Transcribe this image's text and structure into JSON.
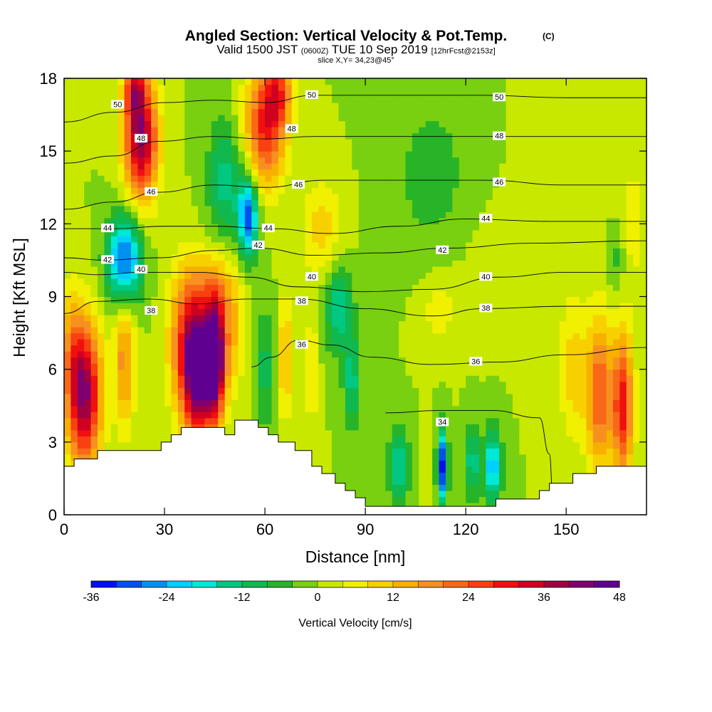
{
  "title": {
    "main": "Angled Section: Vertical Velocity & Pot.Temp.",
    "mark": "(C)",
    "valid_prefix": "Valid 1500 JST",
    "utc": "(0600Z)",
    "date": "TUE 10 Sep 2019",
    "forecast": "[12hrFcst@2153z]",
    "slice": "slice X,Y= 34,23@45°"
  },
  "chart_data": {
    "type": "heatmap",
    "xlabel": "Distance [nm]",
    "ylabel": "Height [Kft MSL]",
    "xlim": [
      0,
      174
    ],
    "ylim": [
      0,
      18
    ],
    "x_ticks": [
      0,
      30,
      60,
      90,
      120,
      150
    ],
    "y_ticks": [
      0,
      3,
      6,
      9,
      12,
      15,
      18
    ],
    "grid": false,
    "colorbar": {
      "title": "Vertical Velocity [cm/s]",
      "min": -36,
      "max": 48,
      "step": 4,
      "tick_values": [
        -36,
        -24,
        -12,
        0,
        12,
        24,
        36,
        48
      ],
      "tick_labels": [
        "-36",
        "-24",
        "-12",
        "0",
        "12",
        "24",
        "36",
        "48"
      ],
      "colors": [
        "#0010f0",
        "#0050f0",
        "#0090f0",
        "#00d0ff",
        "#00e8d8",
        "#00c880",
        "#10b850",
        "#28b428",
        "#78d010",
        "#c8e800",
        "#f0f000",
        "#f8d000",
        "#f8b000",
        "#f89020",
        "#f86818",
        "#f84010",
        "#f01010",
        "#d00020",
        "#a00040",
        "#800070",
        "#600090"
      ]
    },
    "velocity_cells": [
      {
        "x": 6,
        "z": 5.0,
        "rx": 5,
        "rz": 3.0,
        "w": 42
      },
      {
        "x": 18,
        "z": 6.5,
        "rx": 3,
        "rz": 3.0,
        "w": 18
      },
      {
        "x": 2,
        "z": 7.0,
        "rx": 3,
        "rz": 2.5,
        "w": 10
      },
      {
        "x": 23,
        "z": 15.5,
        "rx": 5,
        "rz": 2.5,
        "w": 40
      },
      {
        "x": 21,
        "z": 17.6,
        "rx": 3,
        "rz": 1.2,
        "w": 22
      },
      {
        "x": 18,
        "z": 10.5,
        "rx": 5,
        "rz": 1.8,
        "w": -32
      },
      {
        "x": 40,
        "z": 6.0,
        "rx": 4,
        "rz": 2.6,
        "w": 48
      },
      {
        "x": 45,
        "z": 6.5,
        "rx": 3,
        "rz": 2.6,
        "w": 52
      },
      {
        "x": 36,
        "z": 7.0,
        "rx": 5,
        "rz": 3.0,
        "w": 22
      },
      {
        "x": 50,
        "z": 7.5,
        "rx": 4,
        "rz": 2.5,
        "w": 12
      },
      {
        "x": 44,
        "z": 9.5,
        "rx": 8,
        "rz": 1.5,
        "w": 8
      },
      {
        "x": 55,
        "z": 12.3,
        "rx": 3,
        "rz": 1.7,
        "w": -30
      },
      {
        "x": 48,
        "z": 13.8,
        "rx": 5,
        "rz": 2.5,
        "w": -14
      },
      {
        "x": 60,
        "z": 16.0,
        "rx": 6,
        "rz": 2.5,
        "w": 28
      },
      {
        "x": 64,
        "z": 17.5,
        "rx": 4,
        "rz": 1.5,
        "w": 20
      },
      {
        "x": 60,
        "z": 6.0,
        "rx": 3,
        "rz": 2.5,
        "w": -10
      },
      {
        "x": 66,
        "z": 6.5,
        "rx": 2,
        "rz": 2.5,
        "w": 14
      },
      {
        "x": 74,
        "z": 6.0,
        "rx": 2,
        "rz": 2.5,
        "w": 8
      },
      {
        "x": 77,
        "z": 11.8,
        "rx": 6,
        "rz": 2.0,
        "w": 10
      },
      {
        "x": 82,
        "z": 8.5,
        "rx": 4,
        "rz": 1.8,
        "w": -16
      },
      {
        "x": 86,
        "z": 5.5,
        "rx": 2.5,
        "rz": 2.0,
        "w": -14
      },
      {
        "x": 100,
        "z": 2.0,
        "rx": 3,
        "rz": 1.5,
        "w": -18
      },
      {
        "x": 113,
        "z": 2.0,
        "rx": 1.5,
        "rz": 1.5,
        "w": -34
      },
      {
        "x": 108,
        "z": 2.2,
        "rx": 2,
        "rz": 1.5,
        "w": 4
      },
      {
        "x": 122,
        "z": 2.2,
        "rx": 2,
        "rz": 1.5,
        "w": -16
      },
      {
        "x": 128,
        "z": 2.0,
        "rx": 2.5,
        "rz": 1.5,
        "w": -24
      },
      {
        "x": 135,
        "z": 2.5,
        "rx": 2.5,
        "rz": 1.5,
        "w": 0
      },
      {
        "x": 112,
        "z": 8.5,
        "rx": 6,
        "rz": 1.5,
        "w": 6
      },
      {
        "x": 128,
        "z": 10.5,
        "rx": 12,
        "rz": 2.5,
        "w": 2
      },
      {
        "x": 110,
        "z": 14.0,
        "rx": 12,
        "rz": 3.5,
        "w": -6
      },
      {
        "x": 150,
        "z": 14.5,
        "rx": 10,
        "rz": 3.5,
        "w": 4
      },
      {
        "x": 160,
        "z": 5.0,
        "rx": 4,
        "rz": 3.2,
        "w": 24
      },
      {
        "x": 167,
        "z": 4.5,
        "rx": 3,
        "rz": 3.0,
        "w": 30
      },
      {
        "x": 152,
        "z": 6.0,
        "rx": 4,
        "rz": 3.0,
        "w": 10
      },
      {
        "x": 165,
        "z": 10.5,
        "rx": 3,
        "rz": 1.5,
        "w": -6
      },
      {
        "x": 170,
        "z": 12.0,
        "rx": 4,
        "rz": 3.0,
        "w": 6
      }
    ],
    "terrain_kft": [
      [
        0,
        2.0
      ],
      [
        3,
        2.0
      ],
      [
        3,
        2.3
      ],
      [
        10,
        2.3
      ],
      [
        10,
        2.65
      ],
      [
        29,
        2.65
      ],
      [
        29,
        3.0
      ],
      [
        32,
        3.0
      ],
      [
        32,
        3.3
      ],
      [
        35,
        3.3
      ],
      [
        35,
        3.6
      ],
      [
        48,
        3.6
      ],
      [
        48,
        3.3
      ],
      [
        51,
        3.3
      ],
      [
        51,
        3.9
      ],
      [
        58,
        3.9
      ],
      [
        58,
        3.6
      ],
      [
        61,
        3.6
      ],
      [
        61,
        3.3
      ],
      [
        64,
        3.3
      ],
      [
        64,
        3.0
      ],
      [
        69,
        3.0
      ],
      [
        69,
        2.65
      ],
      [
        74,
        2.65
      ],
      [
        74,
        2.0
      ],
      [
        77,
        2.0
      ],
      [
        77,
        1.7
      ],
      [
        81,
        1.7
      ],
      [
        81,
        1.3
      ],
      [
        84,
        1.3
      ],
      [
        84,
        1.0
      ],
      [
        87,
        1.0
      ],
      [
        87,
        0.7
      ],
      [
        90,
        0.7
      ],
      [
        90,
        0.35
      ],
      [
        129,
        0.35
      ],
      [
        129,
        0.65
      ],
      [
        142,
        0.65
      ],
      [
        142,
        1.0
      ],
      [
        145,
        1.0
      ],
      [
        145,
        1.3
      ],
      [
        152,
        1.3
      ],
      [
        152,
        1.7
      ],
      [
        159,
        1.7
      ],
      [
        159,
        2.0
      ],
      [
        174,
        2.0
      ]
    ],
    "theta_contours": [
      {
        "label": "34",
        "points": [
          [
            96,
            4.2
          ],
          [
            112,
            4.3
          ],
          [
            128,
            4.3
          ],
          [
            142,
            4.0
          ],
          [
            145,
            2.5
          ],
          [
            146,
            0.9
          ]
        ],
        "label_at": [
          113,
          3.8
        ]
      },
      {
        "label": "36",
        "points": [
          [
            56,
            6.1
          ],
          [
            62,
            6.5
          ],
          [
            70,
            7.2
          ],
          [
            80,
            7.0
          ],
          [
            92,
            6.5
          ],
          [
            110,
            6.2
          ],
          [
            130,
            6.3
          ],
          [
            150,
            6.6
          ],
          [
            174,
            6.9
          ]
        ],
        "label_at": [
          71,
          7.0
        ]
      },
      {
        "label": "38",
        "points": [
          [
            0,
            8.3
          ],
          [
            10,
            8.8
          ],
          [
            25,
            8.9
          ],
          [
            40,
            8.7
          ],
          [
            55,
            8.9
          ],
          [
            70,
            8.9
          ],
          [
            90,
            8.5
          ],
          [
            110,
            8.2
          ],
          [
            125,
            8.5
          ],
          [
            150,
            8.6
          ],
          [
            174,
            8.6
          ]
        ],
        "label_at": [
          26,
          8.4
        ]
      },
      {
        "label": "40",
        "points": [
          [
            0,
            10.0
          ],
          [
            10,
            9.9
          ],
          [
            23,
            10.0
          ],
          [
            40,
            10.0
          ],
          [
            55,
            9.8
          ],
          [
            70,
            9.4
          ],
          [
            90,
            9.2
          ],
          [
            110,
            9.3
          ],
          [
            130,
            9.8
          ],
          [
            150,
            10.0
          ],
          [
            174,
            10.0
          ]
        ],
        "label_at": [
          75,
          9.7
        ]
      },
      {
        "label": "42",
        "points": [
          [
            0,
            10.6
          ],
          [
            12,
            10.5
          ],
          [
            28,
            10.6
          ],
          [
            45,
            10.9
          ],
          [
            58,
            11.0
          ],
          [
            75,
            10.7
          ],
          [
            95,
            10.8
          ],
          [
            115,
            11.0
          ],
          [
            140,
            11.2
          ],
          [
            174,
            11.3
          ]
        ],
        "label_at": [
          13,
          10.5
        ]
      },
      {
        "label": "44",
        "points": [
          [
            0,
            11.8
          ],
          [
            15,
            11.8
          ],
          [
            30,
            11.9
          ],
          [
            45,
            11.9
          ],
          [
            62,
            11.8
          ],
          [
            80,
            11.6
          ],
          [
            100,
            11.9
          ],
          [
            120,
            12.2
          ],
          [
            145,
            12.1
          ],
          [
            174,
            12.1
          ]
        ],
        "label_at": [
          12,
          11.8
        ]
      },
      {
        "label": "46",
        "points": [
          [
            0,
            12.6
          ],
          [
            15,
            12.9
          ],
          [
            28,
            13.3
          ],
          [
            45,
            13.6
          ],
          [
            60,
            13.5
          ],
          [
            78,
            13.8
          ],
          [
            100,
            13.8
          ],
          [
            125,
            13.8
          ],
          [
            150,
            13.6
          ],
          [
            174,
            13.6
          ]
        ],
        "label_at": [
          25,
          13.0
        ]
      },
      {
        "label": "48",
        "points": [
          [
            0,
            14.5
          ],
          [
            15,
            14.8
          ],
          [
            28,
            15.4
          ],
          [
            45,
            15.6
          ],
          [
            60,
            15.5
          ],
          [
            75,
            15.6
          ],
          [
            100,
            15.6
          ],
          [
            125,
            15.6
          ],
          [
            150,
            15.6
          ],
          [
            174,
            15.6
          ]
        ],
        "label_at": [
          24,
          15.6
        ]
      },
      {
        "label": "50",
        "points": [
          [
            0,
            16.2
          ],
          [
            15,
            16.6
          ],
          [
            30,
            17.0
          ],
          [
            45,
            17.1
          ],
          [
            60,
            17.0
          ],
          [
            75,
            17.3
          ],
          [
            100,
            17.3
          ],
          [
            125,
            17.3
          ],
          [
            150,
            17.2
          ],
          [
            174,
            17.2
          ]
        ],
        "label_at": [
          16,
          16.9
        ]
      }
    ],
    "contour_labels": [
      {
        "text": "50",
        "x": 16,
        "z": 16.9
      },
      {
        "text": "48",
        "x": 23,
        "z": 15.5
      },
      {
        "text": "46",
        "x": 26,
        "z": 13.3
      },
      {
        "text": "44",
        "x": 13,
        "z": 11.8
      },
      {
        "text": "42",
        "x": 13,
        "z": 10.5
      },
      {
        "text": "40",
        "x": 23,
        "z": 10.1
      },
      {
        "text": "38",
        "x": 26,
        "z": 8.4
      },
      {
        "text": "44",
        "x": 61,
        "z": 11.8
      },
      {
        "text": "42",
        "x": 58,
        "z": 11.1
      },
      {
        "text": "40",
        "x": 74,
        "z": 9.8
      },
      {
        "text": "38",
        "x": 71,
        "z": 8.8
      },
      {
        "text": "36",
        "x": 71,
        "z": 7.0
      },
      {
        "text": "50",
        "x": 74,
        "z": 17.3
      },
      {
        "text": "48",
        "x": 68,
        "z": 15.9
      },
      {
        "text": "46",
        "x": 70,
        "z": 13.6
      },
      {
        "text": "50",
        "x": 130,
        "z": 17.2
      },
      {
        "text": "48",
        "x": 130,
        "z": 15.6
      },
      {
        "text": "46",
        "x": 130,
        "z": 13.7
      },
      {
        "text": "44",
        "x": 126,
        "z": 12.2
      },
      {
        "text": "42",
        "x": 113,
        "z": 10.9
      },
      {
        "text": "40",
        "x": 126,
        "z": 9.8
      },
      {
        "text": "38",
        "x": 126,
        "z": 8.5
      },
      {
        "text": "36",
        "x": 123,
        "z": 6.3
      },
      {
        "text": "34",
        "x": 113,
        "z": 3.8
      }
    ]
  }
}
